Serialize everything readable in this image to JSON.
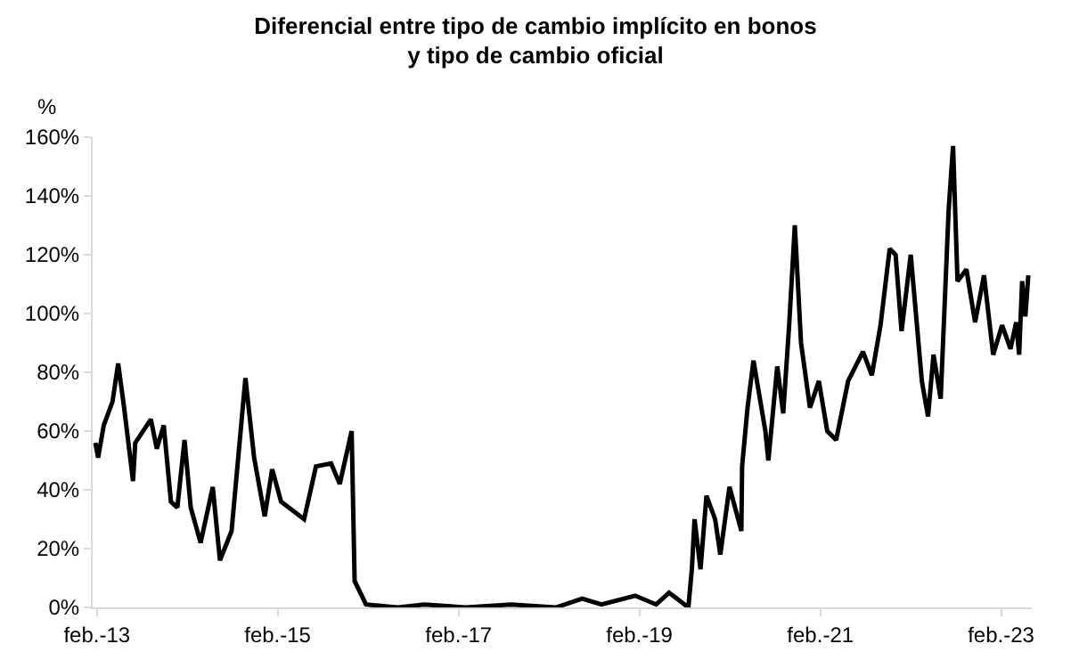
{
  "chart_data": {
    "type": "line",
    "title": "Diferencial entre tipo de cambio implícito en bonos\ny tipo de cambio oficial",
    "ylabel": "%",
    "x": [
      "2013-01-26",
      "2013-02-06",
      "2013-03-01",
      "2013-04-05",
      "2013-04-28",
      "2013-05-22",
      "2013-06-27",
      "2013-07-06",
      "2013-09-07",
      "2013-10-01",
      "2013-10-29",
      "2013-11-27",
      "2013-12-23",
      "2014-01-21",
      "2014-02-15",
      "2014-03-27",
      "2014-05-15",
      "2014-06-13",
      "2014-07-30",
      "2014-09-24",
      "2014-10-29",
      "2014-12-11",
      "2015-01-10",
      "2015-02-15",
      "2015-05-19",
      "2015-07-06",
      "2015-09-05",
      "2015-10-10",
      "2015-11-27",
      "2015-12-09",
      "2016-01-24",
      "2016-06-01",
      "2016-09-15",
      "2017-03-01",
      "2017-09-01",
      "2018-03-01",
      "2018-06-15",
      "2018-09-01",
      "2019-01-15",
      "2019-04-10",
      "2019-06-01",
      "2019-08-18",
      "2019-09-01",
      "2019-09-12",
      "2019-10-06",
      "2019-10-30",
      "2019-12-04",
      "2019-12-25",
      "2020-01-31",
      "2020-03-19",
      "2020-03-22",
      "2020-04-13",
      "2020-05-07",
      "2020-06-24",
      "2020-07-06",
      "2020-08-11",
      "2020-09-04",
      "2020-09-28",
      "2020-10-21",
      "2020-11-15",
      "2020-12-21",
      "2021-01-26",
      "2021-03-01",
      "2021-04-06",
      "2021-05-24",
      "2021-07-23",
      "2021-08-28",
      "2021-10-02",
      "2021-11-08",
      "2021-12-02",
      "2021-12-26",
      "2022-02-01",
      "2022-03-18",
      "2022-04-12",
      "2022-05-04",
      "2022-06-02",
      "2022-07-04",
      "2022-07-22",
      "2022-08-09",
      "2022-09-14",
      "2022-10-19",
      "2022-11-24",
      "2022-12-31",
      "2023-02-05",
      "2023-03-11",
      "2023-04-03",
      "2023-04-15",
      "2023-04-27",
      "2023-05-10",
      "2023-05-22"
    ],
    "series": [
      {
        "color": "#000000",
        "values": [
          56,
          51,
          62,
          70,
          83,
          68,
          43,
          56,
          64,
          54,
          62,
          36,
          34,
          57,
          34,
          22,
          41,
          16,
          26,
          78,
          51,
          31,
          47,
          36,
          30,
          48,
          49,
          42,
          60,
          9,
          1,
          0,
          1,
          0,
          1,
          0,
          3,
          1,
          4,
          1,
          5,
          0,
          13,
          30,
          13,
          38,
          30,
          18,
          41,
          26,
          48,
          68,
          84,
          60,
          50,
          82,
          66,
          96,
          130,
          90,
          68,
          77,
          60,
          57,
          77,
          87,
          79,
          96,
          122,
          120,
          94,
          120,
          77,
          65,
          86,
          71,
          135,
          157,
          111,
          115,
          97,
          113,
          86,
          96,
          88,
          97,
          86,
          111,
          99,
          113
        ]
      }
    ],
    "xlim": [
      "2013-01-15",
      "2023-06-05"
    ],
    "xticks": [
      {
        "value": "2013-02-01",
        "label": "feb.-13"
      },
      {
        "value": "2015-02-01",
        "label": "feb.-15"
      },
      {
        "value": "2017-02-01",
        "label": "feb.-17"
      },
      {
        "value": "2019-02-01",
        "label": "feb.-19"
      },
      {
        "value": "2021-02-01",
        "label": "feb.-21"
      },
      {
        "value": "2023-02-01",
        "label": "feb.-23"
      }
    ],
    "ylim": [
      0,
      160
    ],
    "yticks": [
      {
        "value": 0,
        "label": "0%"
      },
      {
        "value": 20,
        "label": "20%"
      },
      {
        "value": 40,
        "label": "40%"
      },
      {
        "value": 60,
        "label": "60%"
      },
      {
        "value": 80,
        "label": "80%"
      },
      {
        "value": 100,
        "label": "100%"
      },
      {
        "value": 120,
        "label": "120%"
      },
      {
        "value": 140,
        "label": "140%"
      },
      {
        "value": 160,
        "label": "160%"
      }
    ],
    "marker": "none",
    "line_style": "solid"
  }
}
